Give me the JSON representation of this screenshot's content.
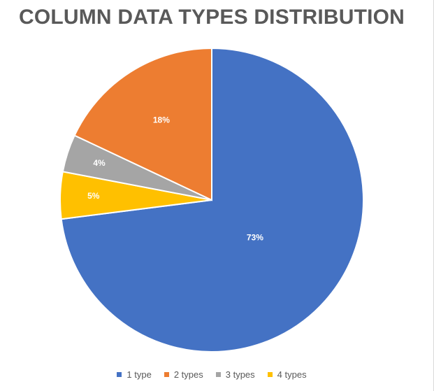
{
  "chart_data": {
    "type": "pie",
    "title": "COLUMN DATA TYPES DISTRIBUTION",
    "categories": [
      "1 type",
      "2 types",
      "3 types",
      "4 types"
    ],
    "values": [
      73,
      18,
      4,
      5
    ],
    "labels": [
      "73%",
      "18%",
      "4%",
      "5%"
    ],
    "colors": [
      "#4472C4",
      "#ED7D31",
      "#A5A5A5",
      "#FFC000"
    ],
    "legend_position": "bottom"
  }
}
